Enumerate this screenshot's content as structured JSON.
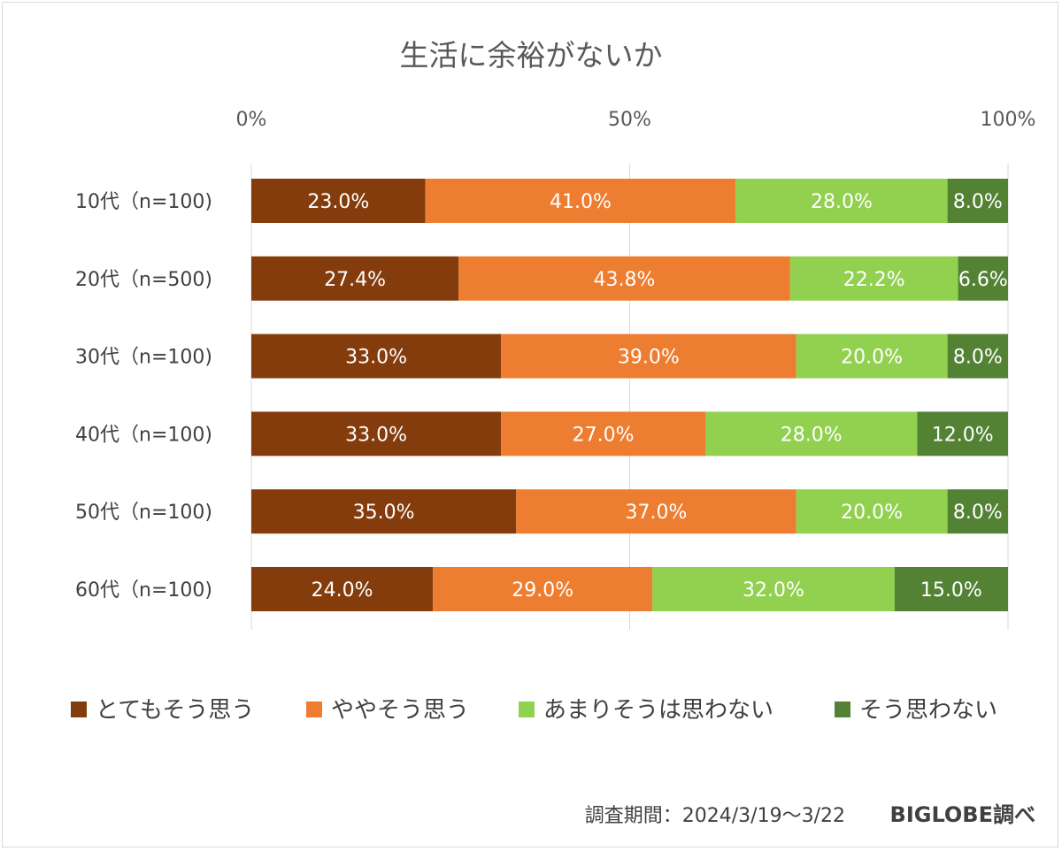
{
  "chart_data": {
    "type": "bar",
    "orientation": "horizontal",
    "stacked": true,
    "title": "生活に余裕がないか",
    "x_ticks": [
      "0%",
      "50%",
      "100%"
    ],
    "xlim": [
      0,
      100
    ],
    "categories": [
      "10代（n=100)",
      "20代（n=500)",
      "30代（n=100)",
      "40代（n=100)",
      "50代（n=100)",
      "60代（n=100)"
    ],
    "series": [
      {
        "name": "とてもそう思う",
        "color": "#843c0c",
        "values": [
          23.0,
          27.4,
          33.0,
          33.0,
          35.0,
          24.0
        ]
      },
      {
        "name": "ややそう思う",
        "color": "#ed7d31",
        "values": [
          41.0,
          43.8,
          39.0,
          27.0,
          37.0,
          29.0
        ]
      },
      {
        "name": "あまりそうは思わない",
        "color": "#92d050",
        "values": [
          28.0,
          22.2,
          20.0,
          28.0,
          20.0,
          32.0
        ]
      },
      {
        "name": "そう思わない",
        "color": "#548235",
        "values": [
          8.0,
          6.6,
          8.0,
          12.0,
          8.0,
          15.0
        ]
      }
    ],
    "grid": true,
    "legend_position": "bottom"
  },
  "footer": {
    "survey_period": "調査期間：2024/3/19～3/22",
    "source": "BIGLOBE調べ"
  }
}
